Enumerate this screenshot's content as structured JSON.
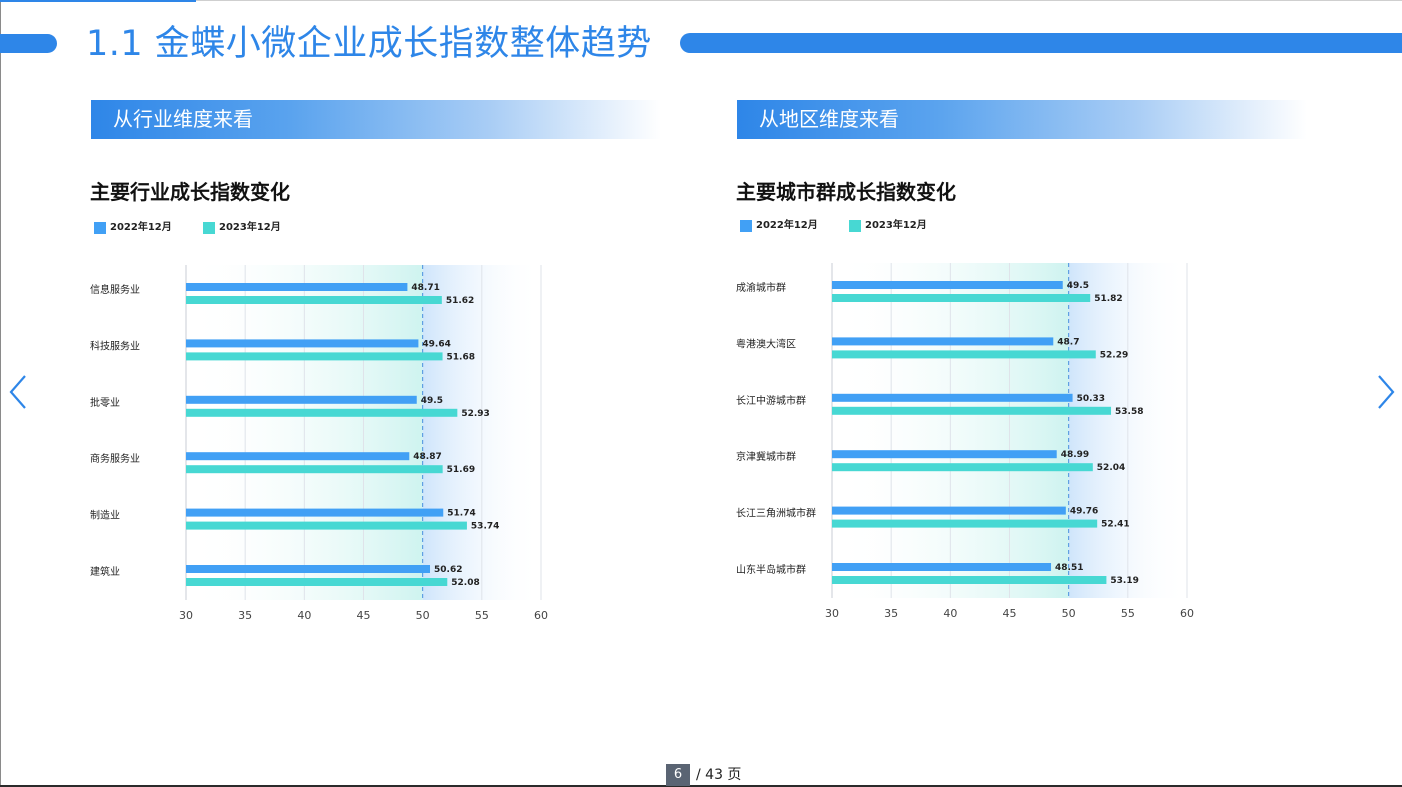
{
  "page_title": "1.1 金蝶小微企业成长指数整体趋势",
  "pager": {
    "current": "6",
    "total_text": "/ 43 页"
  },
  "colors": {
    "accent": "#2e86e8",
    "series_2022": "#41a0f5",
    "series_2023": "#47d8d3"
  },
  "panels": [
    {
      "section_title": "从行业维度来看",
      "chart_title": "主要行业成长指数变化",
      "legend": [
        "2022年12月",
        "2023年12月"
      ]
    },
    {
      "section_title": "从地区维度来看",
      "chart_title": "主要城市群成长指数变化",
      "legend": [
        "2022年12月",
        "2023年12月"
      ]
    }
  ],
  "chart_data": [
    {
      "type": "bar",
      "orientation": "horizontal",
      "title": "主要行业成长指数变化",
      "categories": [
        "信息服务业",
        "科技服务业",
        "批零业",
        "商务服务业",
        "制造业",
        "建筑业"
      ],
      "series": [
        {
          "name": "2022年12月",
          "values": [
            48.71,
            49.64,
            49.5,
            48.87,
            51.74,
            50.62
          ]
        },
        {
          "name": "2023年12月",
          "values": [
            51.62,
            51.68,
            52.93,
            51.69,
            53.74,
            52.08
          ]
        }
      ],
      "xlim": [
        30,
        60
      ],
      "ticks": [
        30,
        35,
        40,
        45,
        50,
        55,
        60
      ],
      "reference_line": 50,
      "grid": true,
      "legend_position": "top-left"
    },
    {
      "type": "bar",
      "orientation": "horizontal",
      "title": "主要城市群成长指数变化",
      "categories": [
        "成渝城市群",
        "粤港澳大湾区",
        "长江中游城市群",
        "京津冀城市群",
        "长江三角洲城市群",
        "山东半岛城市群"
      ],
      "series": [
        {
          "name": "2022年12月",
          "values": [
            49.5,
            48.7,
            50.33,
            48.99,
            49.76,
            48.51
          ]
        },
        {
          "name": "2023年12月",
          "values": [
            51.82,
            52.29,
            53.58,
            52.04,
            52.41,
            53.19
          ]
        }
      ],
      "xlim": [
        30,
        60
      ],
      "ticks": [
        30,
        35,
        40,
        45,
        50,
        55,
        60
      ],
      "reference_line": 50,
      "grid": true,
      "legend_position": "top-left"
    }
  ]
}
